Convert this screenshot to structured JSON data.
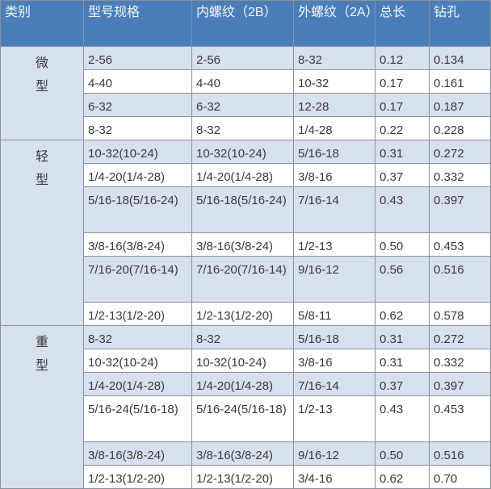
{
  "colors": {
    "header_bg": "#4a7ebb",
    "row_alt_bg": "#d6e0ef",
    "row_bg": "#ffffff"
  },
  "headers": [
    "类别",
    "型号规格",
    "内螺纹（2B）",
    "外螺纹（2A）",
    "总长",
    "钻孔"
  ],
  "groups": [
    {
      "category": [
        "微",
        "型"
      ],
      "rows": [
        [
          "2-56",
          "2-56",
          "8-32",
          "0.12",
          "0.134"
        ],
        [
          "4-40",
          "4-40",
          "10-32",
          "0.17",
          "0.161"
        ],
        [
          "6-32",
          "6-32",
          "12-28",
          "0.17",
          "0.187"
        ],
        [
          "8-32",
          "8-32",
          "1/4-28",
          "0.22",
          "0.228"
        ]
      ]
    },
    {
      "category": [
        "轻",
        "型"
      ],
      "rows": [
        [
          "10-32(10-24)",
          "10-32(10-24)",
          "5/16-18",
          "0.31",
          "0.272"
        ],
        [
          "1/4-20(1/4-28)",
          "1/4-20(1/4-28)",
          "3/8-16",
          "0.37",
          "0.332"
        ],
        [
          "5/16-18(5/16-24)",
          "5/16-18(5/16-24)",
          "7/16-14",
          "0.43",
          "0.397"
        ],
        [
          "3/8-16(3/8-24)",
          "3/8-16(3/8-24)",
          "1/2-13",
          "0.50",
          "0.453"
        ],
        [
          "7/16-20(7/16-14)",
          "7/16-20(7/16-14)",
          "9/16-12",
          "0.56",
          "0.516"
        ],
        [
          "1/2-13(1/2-20)",
          "1/2-13(1/2-20)",
          "5/8-11",
          "0.62",
          "0.578"
        ]
      ]
    },
    {
      "category": [
        "重",
        "型"
      ],
      "rows": [
        [
          "8-32",
          "8-32",
          "5/16-18",
          "0.31",
          "0.272"
        ],
        [
          "10-32(10-24)",
          "10-32(10-24)",
          "3/8-16",
          "0.31",
          "0.332"
        ],
        [
          "1/4-20(1/4-28)",
          "1/4-20(1/4-28)",
          "7/16-14",
          "0.37",
          "0.397"
        ],
        [
          "5/16-24(5/16-18)",
          "5/16-24(5/16-18)",
          "1/2-13",
          "0.43",
          "0.453"
        ],
        [
          "3/8-16(3/8-24)",
          "3/8-16(3/8-24)",
          "9/16-12",
          "0.50",
          "0.516"
        ],
        [
          "1/2-13(1/2-20)",
          "1/2-13(1/2-20)",
          "3/4-16",
          "0.62",
          "0.70"
        ]
      ]
    }
  ]
}
